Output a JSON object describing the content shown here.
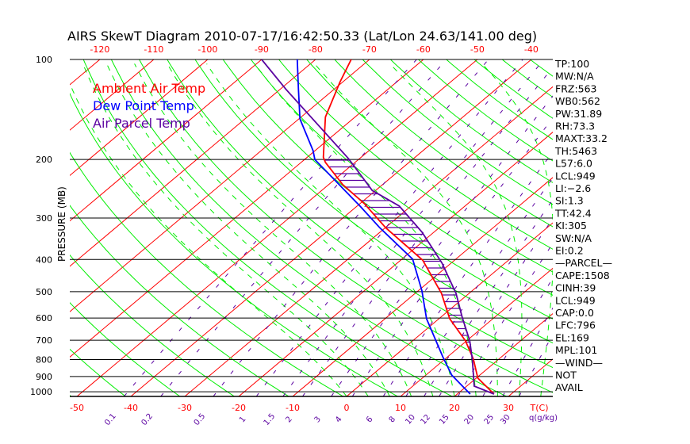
{
  "chart_data": {
    "type": "line",
    "title": "AIRS SkewT Diagram 2010-07-17/16:42:50.33 (Lat/Lon 24.63/141.00 deg)",
    "ylabel": "PRESSURE (MB)",
    "xlabel": "T(C)",
    "mixing_ratio_label": "q(g/kg)",
    "pressure_ticks": [
      100,
      200,
      300,
      400,
      500,
      600,
      700,
      800,
      900,
      1000
    ],
    "bottom_temp_ticks": [
      -50,
      -40,
      -30,
      -20,
      -10,
      0,
      10,
      20,
      30
    ],
    "top_temp_ticks": [
      -120,
      -110,
      -100,
      -90,
      -80,
      -70,
      -60,
      -50,
      -40
    ],
    "mixing_ratio_ticks": [
      "0.1",
      "0.2",
      "0.5",
      "1",
      "1.5",
      "2",
      "3",
      "4",
      "6",
      "8",
      "10",
      "12",
      "15",
      "20",
      "25",
      "30"
    ],
    "legend": [
      {
        "label": "Ambient Air Temp",
        "color": "#ff0000"
      },
      {
        "label": "Dew Point Temp",
        "color": "#0000ff"
      },
      {
        "label": "Air Parcel Temp",
        "color": "#5a00a0"
      }
    ],
    "series": [
      {
        "name": "Ambient Air Temp",
        "color": "#ff0000",
        "points": [
          [
            1016,
            26.8
          ],
          [
            910,
            20.3
          ],
          [
            798,
            15.3
          ],
          [
            703,
            9.8
          ],
          [
            603,
            2.0
          ],
          [
            506,
            -5.1
          ],
          [
            402,
            -15.9
          ],
          [
            321,
            -29.9
          ],
          [
            272,
            -39.1
          ],
          [
            238,
            -47.4
          ],
          [
            204,
            -55.5
          ],
          [
            197,
            -57.0
          ],
          [
            149,
            -65.5
          ],
          [
            117,
            -70.5
          ],
          [
            100,
            -73.4
          ]
        ]
      },
      {
        "name": "Dew Point Temp",
        "color": "#0000ff",
        "points": [
          [
            1016,
            22.4
          ],
          [
            891,
            14.8
          ],
          [
            785,
            9.1
          ],
          [
            603,
            -2.3
          ],
          [
            497,
            -9.3
          ],
          [
            399,
            -18.0
          ],
          [
            321,
            -31.0
          ],
          [
            276,
            -39.5
          ],
          [
            200,
            -58.1
          ],
          [
            188,
            -60.4
          ],
          [
            151,
            -69.8
          ],
          [
            123,
            -76.6
          ],
          [
            100,
            -83.4
          ]
        ]
      },
      {
        "name": "Air Parcel Temp",
        "color": "#5a00a0",
        "points": [
          [
            1016,
            26.8
          ],
          [
            962,
            21.4
          ],
          [
            798,
            15.1
          ],
          [
            703,
            10.6
          ],
          [
            597,
            4.0
          ],
          [
            506,
            -2.4
          ],
          [
            410,
            -11.7
          ],
          [
            331,
            -22.2
          ],
          [
            276,
            -32.2
          ],
          [
            248,
            -40.6
          ],
          [
            199,
            -52.0
          ],
          [
            123,
            -78.9
          ],
          [
            100,
            -90.0
          ]
        ]
      }
    ],
    "pressure_range": [
      100,
      1033
    ],
    "colors": {
      "isotherm": "#ff0000",
      "dry_adiabat": "#00ee00",
      "moist_adiabat": "#00ee00",
      "mixing_ratio": "#5a00a0",
      "frame": "#000000"
    }
  },
  "stats": [
    "TP:100",
    "MW:N/A",
    "FRZ:563",
    "WB0:562",
    "PW:31.89",
    "RH:73.3",
    "MAXT:33.2",
    "TH:5463",
    "L57:6.0",
    "LCL:949",
    "LI:−2.6",
    "SI:1.3",
    "TT:42.4",
    "KI:305",
    "SW:N/A",
    "EI:0.2",
    "—PARCEL—",
    "CAPE:1508",
    "CINH:39",
    "LCL:949",
    "CAP:0.0",
    "LFC:796",
    "EL:169",
    "MPL:101",
    "—WIND—",
    "NOT",
    "AVAIL"
  ]
}
